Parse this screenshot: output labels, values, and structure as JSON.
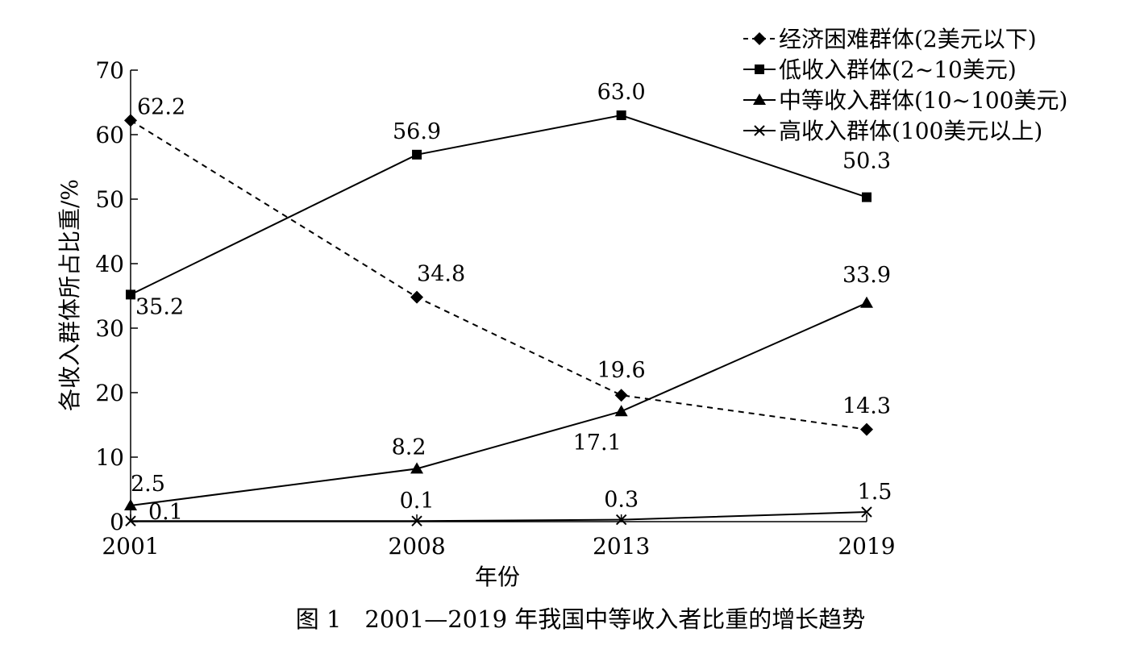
{
  "chart_data": {
    "type": "line",
    "caption": "图 1　2001—2019 年我国中等收入者比重的增长趋势",
    "xlabel": "年份",
    "ylabel": "各收入群体所占比重/%",
    "categories": [
      "2001",
      "2008",
      "2013",
      "2019"
    ],
    "ylim": [
      0,
      70
    ],
    "yticks": [
      0,
      10,
      20,
      30,
      40,
      50,
      60,
      70
    ],
    "grid": false,
    "legend_position": "top-right",
    "series": [
      {
        "name": "经济困难群体(2美元以下)",
        "values": [
          62.2,
          34.8,
          19.6,
          14.3
        ],
        "labels": [
          "62.2",
          "34.8",
          "19.6",
          "14.3"
        ],
        "marker": "diamond",
        "line_style": "dashed"
      },
      {
        "name": "低收入群体(2~10美元)",
        "values": [
          35.2,
          56.9,
          63.0,
          50.3
        ],
        "labels": [
          "35.2",
          "56.9",
          "63.0",
          "50.3"
        ],
        "marker": "square",
        "line_style": "solid"
      },
      {
        "name": "中等收入群体(10~100美元)",
        "values": [
          2.5,
          8.2,
          17.1,
          33.9
        ],
        "labels": [
          "2.5",
          "8.2",
          "17.1",
          "33.9"
        ],
        "marker": "triangle",
        "line_style": "solid"
      },
      {
        "name": "高收入群体(100美元以上)",
        "values": [
          0.1,
          0.1,
          0.3,
          1.5
        ],
        "labels": [
          "0.1",
          "0.1",
          "0.3",
          "1.5"
        ],
        "marker": "x",
        "line_style": "solid"
      }
    ],
    "colors": {
      "line": "#000000",
      "background": "#ffffff"
    }
  }
}
